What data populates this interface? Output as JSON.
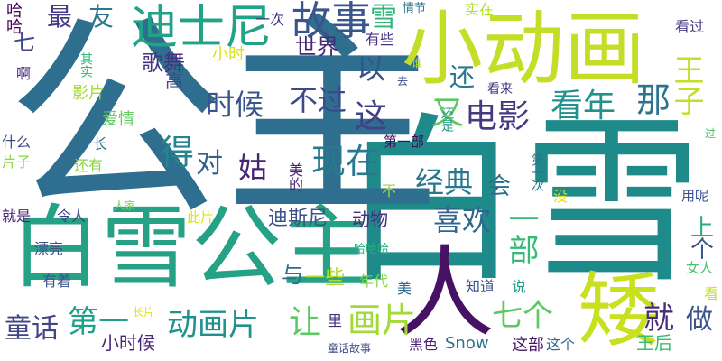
{
  "cloud": {
    "words": [
      {
        "text": "白雪",
        "color": "#1f8a8a"
      },
      {
        "text": "公主",
        "color": "#2e6e8e"
      },
      {
        "text": "白雪公主",
        "color": "#25a186"
      },
      {
        "text": "小动画",
        "color": "#c4de28"
      },
      {
        "text": "人",
        "color": "#471164"
      },
      {
        "text": "矮",
        "color": "#c8e020"
      },
      {
        "text": "迪士尼",
        "color": "#20a386"
      },
      {
        "text": "故事",
        "color": "#39568c"
      },
      {
        "text": "电影",
        "color": "#443983"
      },
      {
        "text": "现在",
        "color": "#29798e"
      },
      {
        "text": "经典",
        "color": "#2a788e"
      },
      {
        "text": "会",
        "color": "#2d708e"
      },
      {
        "text": "喜欢",
        "color": "#31678e"
      },
      {
        "text": "一部",
        "color": "#39b977"
      },
      {
        "text": "七个",
        "color": "#5ec962"
      },
      {
        "text": "就",
        "color": "#472d7b"
      },
      {
        "text": "做",
        "color": "#3b528b"
      },
      {
        "text": "王子",
        "color": "#c0df25"
      },
      {
        "text": "那",
        "color": "#2c738e"
      },
      {
        "text": "看年",
        "color": "#21918c"
      },
      {
        "text": "画片",
        "color": "#a2da37"
      },
      {
        "text": "让",
        "color": "#5ec962"
      },
      {
        "text": "动画片",
        "color": "#20928c"
      },
      {
        "text": "童话",
        "color": "#414487"
      },
      {
        "text": "第一",
        "color": "#1fa088"
      },
      {
        "text": "时候",
        "color": "#39568c"
      },
      {
        "text": "不过",
        "color": "#3e4989"
      },
      {
        "text": "这",
        "color": "#424086"
      },
      {
        "text": "又",
        "color": "#5ec962"
      },
      {
        "text": "得",
        "color": "#25858e"
      },
      {
        "text": "对",
        "color": "#35608d"
      },
      {
        "text": "姑",
        "color": "#482374"
      },
      {
        "text": "以",
        "color": "#3b528b"
      },
      {
        "text": "还",
        "color": "#2a788e"
      },
      {
        "text": "世界",
        "color": "#472a7a"
      },
      {
        "text": "歌舞",
        "color": "#46337e"
      },
      {
        "text": "小时",
        "color": "#d8e219"
      },
      {
        "text": "最",
        "color": "#443a83"
      },
      {
        "text": "友",
        "color": "#2a788e"
      },
      {
        "text": "七",
        "color": "#414487"
      },
      {
        "text": "雪",
        "color": "#31b57b"
      },
      {
        "text": "迪斯尼",
        "color": "#3b528b"
      },
      {
        "text": "动物",
        "color": "#472d7b"
      },
      {
        "text": "上",
        "color": "#27ad81"
      },
      {
        "text": "个",
        "color": "#38588c"
      },
      {
        "text": "一些",
        "color": "#b5de2b"
      },
      {
        "text": "与",
        "color": "#2e6d8e"
      },
      {
        "text": "小时候",
        "color": "#482677"
      },
      {
        "text": "Snow",
        "color": "#2c728e"
      },
      {
        "text": "王后",
        "color": "#3dbc74"
      },
      {
        "text": "这部",
        "color": "#471365"
      },
      {
        "text": "这个",
        "color": "#31688e"
      },
      {
        "text": "哈哈",
        "color": "#440154"
      },
      {
        "text": "一次",
        "color": "#46327e"
      },
      {
        "text": "情节",
        "color": "#2d708e"
      },
      {
        "text": "实在",
        "color": "#b5de2b"
      },
      {
        "text": "看过",
        "color": "#443b84"
      },
      {
        "text": "有些",
        "color": "#463480"
      },
      {
        "text": "看来",
        "color": "#46337e"
      },
      {
        "text": "第一部",
        "color": "#460b5e"
      },
      {
        "text": "影片",
        "color": "#a5db36"
      },
      {
        "text": "高",
        "color": "#3f4889"
      },
      {
        "text": "爱情",
        "color": "#62cb5f"
      },
      {
        "text": "什么",
        "color": "#3e4a89"
      },
      {
        "text": "片子",
        "color": "#8ed645"
      },
      {
        "text": "还有",
        "color": "#8bd646"
      },
      {
        "text": "长",
        "color": "#2f6c8e"
      },
      {
        "text": "就是",
        "color": "#482576"
      },
      {
        "text": "令人",
        "color": "#414487"
      },
      {
        "text": "此片",
        "color": "#dde318"
      },
      {
        "text": "人家",
        "color": "#7ad151"
      },
      {
        "text": "漂亮",
        "color": "#3b528b"
      },
      {
        "text": "有着",
        "color": "#3b528b"
      },
      {
        "text": "哈哈哈",
        "color": "#27ad81"
      },
      {
        "text": "年代",
        "color": "#85d54a"
      },
      {
        "text": "知道",
        "color": "#3c4f8a"
      },
      {
        "text": "女人",
        "color": "#4ac16d"
      },
      {
        "text": "用呢",
        "color": "#3b528b"
      },
      {
        "text": "长片",
        "color": "#dde318"
      },
      {
        "text": "里",
        "color": "#472c7a"
      },
      {
        "text": "童话故事",
        "color": "#3e4989"
      },
      {
        "text": "黑色",
        "color": "#482173"
      },
      {
        "text": "不",
        "color": "#a2da37"
      },
      {
        "text": "第一次",
        "color": "#2c728e"
      },
      {
        "text": "没",
        "color": "#dde318"
      },
      {
        "text": "说",
        "color": "#1f9e89"
      },
      {
        "text": "看",
        "color": "#bddf26"
      },
      {
        "text": "过",
        "color": "#4ac16d"
      },
      {
        "text": "啊",
        "color": "#472a7a"
      },
      {
        "text": "其实",
        "color": "#35b779"
      },
      {
        "text": "去",
        "color": "#3e4989"
      },
      {
        "text": "谁",
        "color": "#b5de2b"
      },
      {
        "text": "还是",
        "color": "#1f9a8a"
      },
      {
        "text": "美的",
        "color": "#482475"
      },
      {
        "text": "美",
        "color": "#31688e"
      }
    ]
  }
}
